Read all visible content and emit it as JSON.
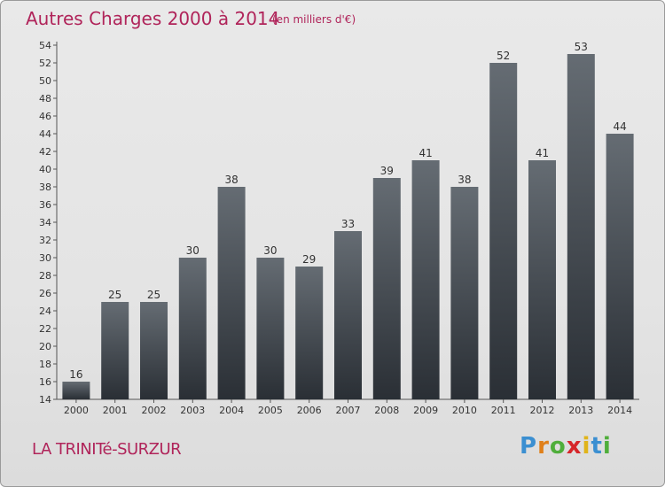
{
  "header": {
    "title": "Autres Charges 2000 à 2014",
    "subtitle": "(en milliers d'€)"
  },
  "footer": {
    "commune": "LA TRINITé-SURZUR",
    "logo_letters": [
      {
        "char": "P",
        "color": "#3b8fd1"
      },
      {
        "char": "r",
        "color": "#e0801a"
      },
      {
        "char": "o",
        "color": "#4fae3b"
      },
      {
        "char": "x",
        "color": "#d6262a"
      },
      {
        "char": "i",
        "color": "#e0b41a"
      },
      {
        "char": "t",
        "color": "#3b8fd1"
      },
      {
        "char": "i",
        "color": "#4fae3b"
      }
    ]
  },
  "colors": {
    "bar_top": "#656c73",
    "bar_bottom": "#2a2f35",
    "text": "#333333",
    "accent": "#b0245a"
  },
  "chart_data": {
    "type": "bar",
    "categories": [
      "2000",
      "2001",
      "2002",
      "2003",
      "2004",
      "2005",
      "2006",
      "2007",
      "2008",
      "2009",
      "2010",
      "2011",
      "2012",
      "2013",
      "2014"
    ],
    "values": [
      16,
      25,
      25,
      30,
      38,
      30,
      29,
      33,
      39,
      41,
      38,
      52,
      41,
      53,
      44
    ],
    "ylim": [
      14,
      54
    ],
    "yticks": [
      14,
      16,
      18,
      20,
      22,
      24,
      26,
      28,
      30,
      32,
      34,
      36,
      38,
      40,
      42,
      44,
      46,
      48,
      50,
      52,
      54
    ],
    "grid": false,
    "data_labels": true
  }
}
